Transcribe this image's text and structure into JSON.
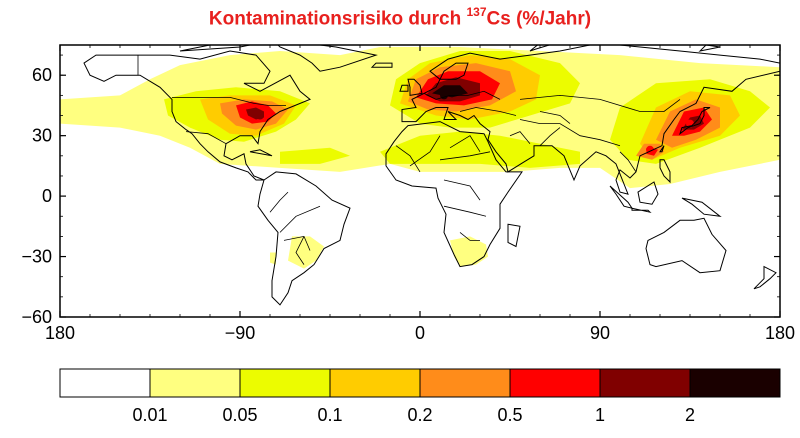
{
  "title": {
    "prefix": "Kontaminationsrisiko durch ",
    "isotope_mass": "137",
    "isotope_symbol": "Cs",
    "unit": " (%/Jahr)",
    "color": "#e8201e"
  },
  "chart_data": {
    "type": "heatmap",
    "title": "Kontaminationsrisiko durch 137Cs (%/Jahr)",
    "xlim": [
      -180,
      180
    ],
    "ylim": [
      -60,
      75
    ],
    "x_ticks": [
      {
        "value": -180,
        "label": "180"
      },
      {
        "value": -90,
        "label": "−90"
      },
      {
        "value": 0,
        "label": "0"
      },
      {
        "value": 90,
        "label": "90"
      },
      {
        "value": 180,
        "label": "180"
      }
    ],
    "y_ticks": [
      {
        "value": 60,
        "label": "60"
      },
      {
        "value": 30,
        "label": "30"
      },
      {
        "value": 0,
        "label": "0"
      },
      {
        "value": -30,
        "label": "−30"
      },
      {
        "value": -60,
        "label": "−60"
      }
    ],
    "colorbar": {
      "bins": [
        {
          "range": "<0.01",
          "color": "#ffffff"
        },
        {
          "range": "0.01–0.05",
          "color": "#ffff80"
        },
        {
          "range": "0.05–0.1",
          "color": "#ecfc00"
        },
        {
          "range": "0.1–0.2",
          "color": "#ffcc00"
        },
        {
          "range": "0.2–0.5",
          "color": "#ff8c1a"
        },
        {
          "range": "0.5–1",
          "color": "#ff0000"
        },
        {
          "range": "1–2",
          "color": "#800000"
        },
        {
          "range": ">2",
          "color": "#1a0000"
        }
      ],
      "labels": [
        "0.01",
        "0.05",
        "0.1",
        "0.2",
        "0.5",
        "1",
        "2"
      ]
    },
    "hotspots": [
      {
        "region": "Eastern North America",
        "lon": -80,
        "lat": 40,
        "level": "1–2"
      },
      {
        "region": "Europe",
        "lon": 12,
        "lat": 50,
        "level": ">2"
      },
      {
        "region": "East Asia",
        "lon": 135,
        "lat": 36,
        "level": "0.5–1"
      },
      {
        "region": "Taiwan / South China",
        "lon": 115,
        "lat": 23,
        "level": "0.5–1"
      }
    ]
  }
}
